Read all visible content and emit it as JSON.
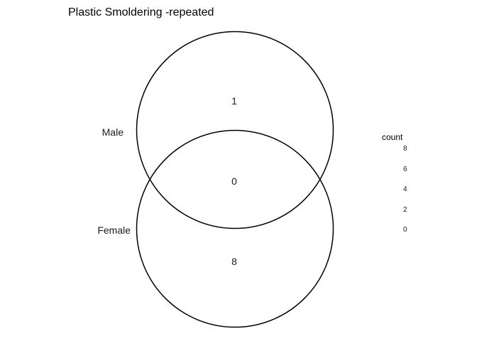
{
  "title": "Plastic Smoldering -repeated",
  "sets": [
    {
      "name": "Male"
    },
    {
      "name": "Female"
    }
  ],
  "regions": {
    "male_only": 1,
    "both": 0,
    "female_only": 8
  },
  "legend": {
    "title": "count",
    "ticks": [
      "8",
      "6",
      "4",
      "2",
      "0"
    ]
  },
  "colors": {
    "stroke": "#000000",
    "text": "#1a1a1a",
    "background": "#ffffff"
  }
}
